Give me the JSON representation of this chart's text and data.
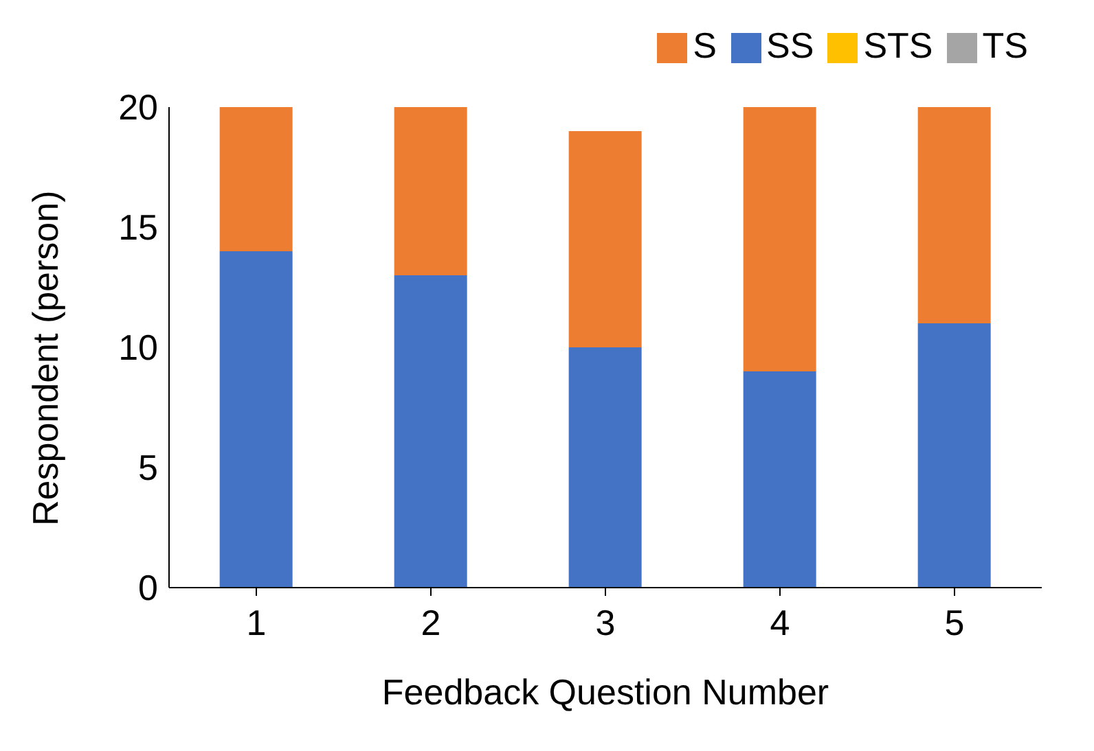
{
  "chart_data": {
    "type": "bar",
    "stacked": true,
    "xlabel": "Feedback Question Number",
    "ylabel": "Respondent (person)",
    "categories": [
      "1",
      "2",
      "3",
      "4",
      "5"
    ],
    "series": [
      {
        "name": "SS",
        "color": "#4472c4",
        "values": [
          14,
          13,
          10,
          9,
          11
        ]
      },
      {
        "name": "S",
        "color": "#ed7d31",
        "values": [
          6,
          7,
          9,
          11,
          9
        ]
      },
      {
        "name": "TS",
        "color": "#a5a5a5",
        "values": [
          0,
          0,
          0,
          0,
          0
        ]
      },
      {
        "name": "STS",
        "color": "#ffc000",
        "values": [
          0,
          0,
          0,
          0,
          0
        ]
      }
    ],
    "ylim": [
      0,
      20
    ],
    "yticks": [
      0,
      5,
      10,
      15,
      20
    ],
    "grid": false,
    "legend": "top right"
  }
}
